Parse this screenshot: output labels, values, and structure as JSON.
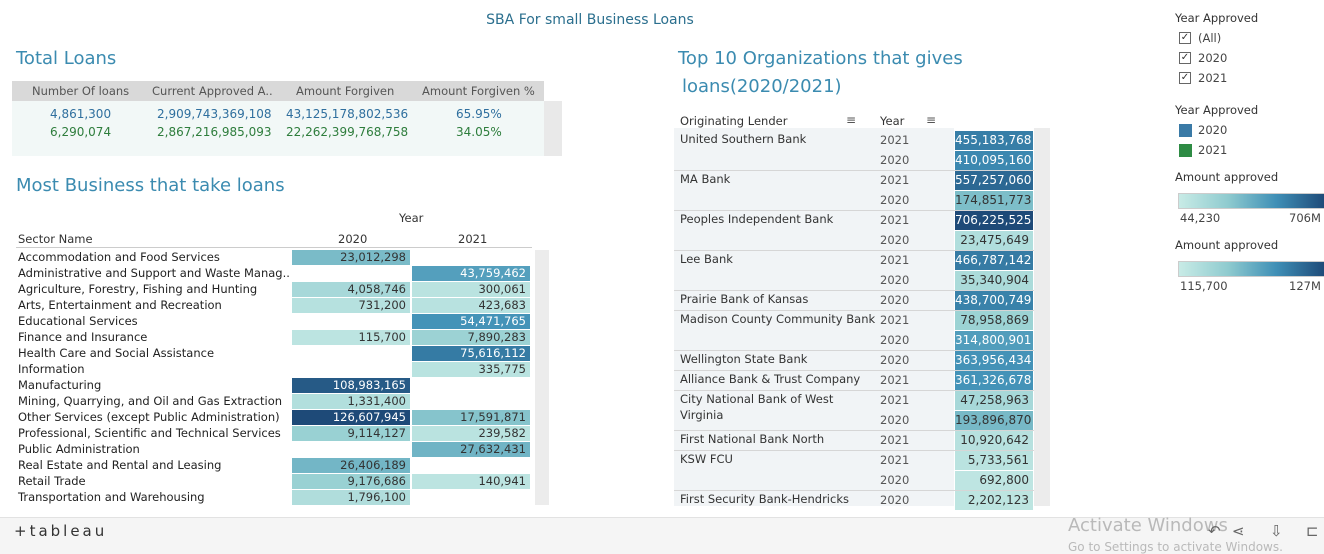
{
  "dashboard": {
    "title": "SBA For small Business Loans"
  },
  "total_loans": {
    "title": "Total Loans",
    "headers": [
      "Number Of loans",
      "Current Approved A..",
      "Amount Forgiven",
      "Amount Forgiven %"
    ],
    "rows": [
      {
        "year": "2020",
        "cells": [
          "4,861,300",
          "2,909,743,369,108",
          "43,125,178,802,536",
          "65.95%"
        ]
      },
      {
        "year": "2021",
        "cells": [
          "6,290,074",
          "2,867,216,985,093",
          "22,262,399,768,758",
          "34.05%"
        ]
      }
    ]
  },
  "most_business": {
    "title": "Most Business that take loans",
    "col_group": "Year",
    "row_header": "Sector Name",
    "years": [
      "2020",
      "2021"
    ],
    "rows": [
      {
        "sector": "Accommodation and Food Services",
        "v2020": "23,012,298",
        "v2021": ""
      },
      {
        "sector": "Administrative and Support and Waste Manag..",
        "v2020": "",
        "v2021": "43,759,462"
      },
      {
        "sector": "Agriculture, Forestry, Fishing and Hunting",
        "v2020": "4,058,746",
        "v2021": "300,061"
      },
      {
        "sector": "Arts, Entertainment and Recreation",
        "v2020": "731,200",
        "v2021": "423,683"
      },
      {
        "sector": "Educational Services",
        "v2020": "",
        "v2021": "54,471,765"
      },
      {
        "sector": "Finance and Insurance",
        "v2020": "115,700",
        "v2021": "7,890,283"
      },
      {
        "sector": "Health Care and Social Assistance",
        "v2020": "",
        "v2021": "75,616,112"
      },
      {
        "sector": "Information",
        "v2020": "",
        "v2021": "335,775"
      },
      {
        "sector": "Manufacturing",
        "v2020": "108,983,165",
        "v2021": ""
      },
      {
        "sector": "Mining, Quarrying, and Oil and Gas Extraction",
        "v2020": "1,331,400",
        "v2021": ""
      },
      {
        "sector": "Other Services (except Public Administration)",
        "v2020": "126,607,945",
        "v2021": "17,591,871"
      },
      {
        "sector": "Professional, Scientific and Technical Services",
        "v2020": "9,114,127",
        "v2021": "239,582"
      },
      {
        "sector": "Public Administration",
        "v2020": "",
        "v2021": "27,632,431"
      },
      {
        "sector": "Real Estate and Rental and Leasing",
        "v2020": "26,406,189",
        "v2021": ""
      },
      {
        "sector": "Retail Trade",
        "v2020": "9,176,686",
        "v2021": "140,941"
      },
      {
        "sector": "Transportation and Warehousing",
        "v2020": "1,796,100",
        "v2021": ""
      }
    ]
  },
  "top10": {
    "title_line1": "Top 10 Organizations that gives",
    "title_line2": "loans(2020/2021)",
    "col_lender": "Originating Lender",
    "col_year": "Year",
    "groups": [
      {
        "lender": "United Southern Bank",
        "rows": [
          {
            "year": "2021",
            "value": "455,183,768"
          },
          {
            "year": "2020",
            "value": "410,095,160"
          }
        ]
      },
      {
        "lender": "MA Bank",
        "rows": [
          {
            "year": "2021",
            "value": "557,257,060"
          },
          {
            "year": "2020",
            "value": "174,851,773"
          }
        ]
      },
      {
        "lender": "Peoples Independent Bank",
        "rows": [
          {
            "year": "2021",
            "value": "706,225,525"
          },
          {
            "year": "2020",
            "value": "23,475,649"
          }
        ]
      },
      {
        "lender": "Lee Bank",
        "rows": [
          {
            "year": "2021",
            "value": "466,787,142"
          },
          {
            "year": "2020",
            "value": "35,340,904"
          }
        ]
      },
      {
        "lender": "Prairie Bank of Kansas",
        "rows": [
          {
            "year": "2020",
            "value": "438,700,749"
          }
        ]
      },
      {
        "lender": "Madison County Community Bank",
        "rows": [
          {
            "year": "2021",
            "value": "78,958,869"
          },
          {
            "year": "2020",
            "value": "314,800,901"
          }
        ]
      },
      {
        "lender": "Wellington State Bank",
        "rows": [
          {
            "year": "2020",
            "value": "363,956,434"
          }
        ]
      },
      {
        "lender": "Alliance Bank & Trust Company",
        "rows": [
          {
            "year": "2021",
            "value": "361,326,678"
          }
        ]
      },
      {
        "lender": "City National Bank of West Virginia",
        "rows": [
          {
            "year": "2021",
            "value": "47,258,963"
          },
          {
            "year": "2020",
            "value": "193,896,870"
          }
        ]
      },
      {
        "lender": "First National Bank North",
        "rows": [
          {
            "year": "2021",
            "value": "10,920,642"
          }
        ]
      },
      {
        "lender": "KSW FCU",
        "rows": [
          {
            "year": "2021",
            "value": "5,733,561"
          },
          {
            "year": "2020",
            "value": "692,800"
          }
        ]
      },
      {
        "lender": "First Security Bank-Hendricks",
        "rows": [
          {
            "year": "2020",
            "value": "2,202,123"
          }
        ]
      }
    ]
  },
  "legend": {
    "filter_title": "Year Approved",
    "filter_options": [
      {
        "label": "(All)",
        "checked": true
      },
      {
        "label": "2020",
        "checked": true
      },
      {
        "label": "2021",
        "checked": true
      }
    ],
    "color_title": "Year Approved",
    "color_items": [
      {
        "label": "2020",
        "color": "#3a7aa6"
      },
      {
        "label": "2021",
        "color": "#2e8b44"
      }
    ],
    "amount1": {
      "title": "Amount approved",
      "min": "44,230",
      "max": "706M"
    },
    "amount2": {
      "title": "Amount approved",
      "min": "115,700",
      "max": "127M"
    }
  },
  "footer": {
    "logo": "+tableau",
    "watermark1": "Activate Windows",
    "watermark2": "Go to Settings to activate Windows.",
    "icons": [
      "back-icon",
      "forward-icon",
      "share-icon",
      "download-icon",
      "fullscreen-icon"
    ]
  },
  "colors": {
    "teal_light": "#c8ebe6",
    "teal_dark": "#1e4a78",
    "title_blue": "#3b8bb0"
  }
}
